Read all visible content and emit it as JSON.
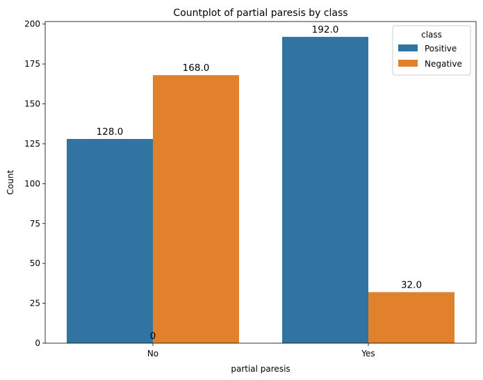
{
  "chart_data": {
    "type": "bar",
    "title": "Countplot of partial paresis by class",
    "xlabel": "partial paresis",
    "ylabel": "Count",
    "categories": [
      "No",
      "Yes"
    ],
    "series": [
      {
        "name": "Positive",
        "values": [
          128,
          192
        ],
        "color": "#3274a1",
        "labels": [
          "128.0",
          "192.0"
        ]
      },
      {
        "name": "Negative",
        "values": [
          168,
          32
        ],
        "color": "#e1812c",
        "labels": [
          "168.0",
          "32.0"
        ]
      }
    ],
    "extra_annotation": "0",
    "ylim": [
      0,
      201.6
    ],
    "yticks": [
      0,
      25,
      50,
      75,
      100,
      125,
      150,
      175,
      200
    ],
    "grid": false,
    "legend": {
      "title": "class",
      "placement": "top-right"
    }
  }
}
